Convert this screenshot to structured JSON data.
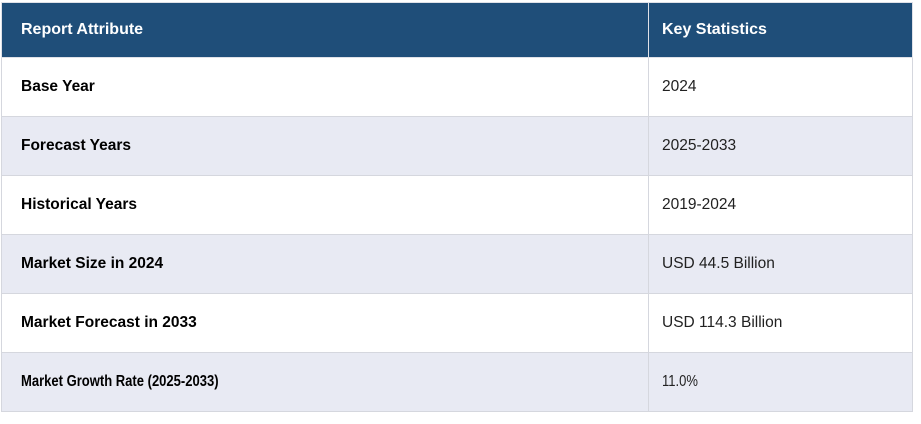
{
  "table": {
    "columns": [
      {
        "label": "Report Attribute"
      },
      {
        "label": "Key Statistics"
      }
    ],
    "rows": [
      {
        "attribute": "Base Year",
        "value": "2024"
      },
      {
        "attribute": "Forecast Years",
        "value": "2025-2033"
      },
      {
        "attribute": "Historical Years",
        "value": "2019-2024"
      },
      {
        "attribute": "Market Size in 2024",
        "value": "USD 44.5 Billion"
      },
      {
        "attribute": "Market Forecast in 2033",
        "value": "USD 114.3 Billion"
      },
      {
        "attribute": "Market Growth Rate (2025-2033)",
        "value": "11.0%"
      }
    ],
    "colors": {
      "header_bg": "#1f4e79",
      "header_text": "#ffffff",
      "row_bg": "#ffffff",
      "row_alt_bg": "#e8eaf3",
      "border": "#d5d7de",
      "attr_text": "#000000",
      "value_text": "#212121"
    }
  },
  "chart_data": {
    "type": "table",
    "columns": [
      "Report Attribute",
      "Key Statistics"
    ],
    "rows": [
      [
        "Base Year",
        "2024"
      ],
      [
        "Forecast Years",
        "2025-2033"
      ],
      [
        "Historical Years",
        "2019-2024"
      ],
      [
        "Market Size in 2024",
        "USD 44.5 Billion"
      ],
      [
        "Market Forecast in 2033",
        "USD 114.3 Billion"
      ],
      [
        "Market Growth Rate (2025-2033)",
        "11.0%"
      ]
    ]
  }
}
